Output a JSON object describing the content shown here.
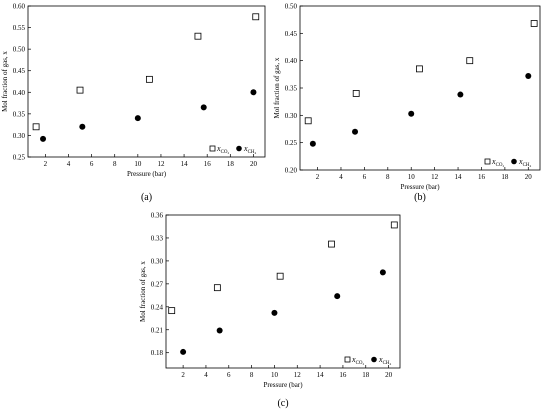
{
  "figure": {
    "marker_colors": {
      "co2": "#ffffff",
      "ch4": "#000000",
      "stroke": "#000000"
    }
  },
  "chart_data": [
    {
      "type": "scatter",
      "panel_label": "(a)",
      "xlabel": "Pressure (bar)",
      "ylabel": "Mol fraction of gas, x",
      "xlim": [
        0.5,
        21
      ],
      "ylim": [
        0.25,
        0.6
      ],
      "xticks": [
        "2",
        "4",
        "6",
        "8",
        "10",
        "12",
        "14",
        "16",
        "18",
        "20"
      ],
      "yticks": [
        "0.25",
        "0.30",
        "0.35",
        "0.40",
        "0.45",
        "0.50",
        "0.55",
        "0.60"
      ],
      "legend_position": "bottom-right",
      "series": [
        {
          "name": "x",
          "name_sub": "CO₂",
          "marker": "open-square",
          "x": [
            1.2,
            5.0,
            11.0,
            15.2,
            20.2
          ],
          "y": [
            0.32,
            0.405,
            0.43,
            0.53,
            0.575
          ]
        },
        {
          "name": "x",
          "name_sub": "CH₄",
          "marker": "filled-circle",
          "x": [
            1.8,
            5.2,
            10.0,
            15.7,
            20.0
          ],
          "y": [
            0.292,
            0.32,
            0.34,
            0.365,
            0.4
          ]
        }
      ]
    },
    {
      "type": "scatter",
      "panel_label": "(b)",
      "xlabel": "Pressure (bar)",
      "ylabel": "Mol fraction of gas, x",
      "xlim": [
        0.5,
        21
      ],
      "ylim": [
        0.2,
        0.5
      ],
      "xticks": [
        "2",
        "4",
        "6",
        "8",
        "10",
        "12",
        "14",
        "16",
        "18",
        "20"
      ],
      "yticks": [
        "0.20",
        "0.25",
        "0.30",
        "0.35",
        "0.40",
        "0.45",
        "0.50"
      ],
      "legend_position": "bottom-right",
      "series": [
        {
          "name": "x",
          "name_sub": "CO₂",
          "marker": "open-square",
          "x": [
            1.2,
            5.3,
            10.7,
            15.0,
            20.5
          ],
          "y": [
            0.29,
            0.34,
            0.385,
            0.4,
            0.468
          ]
        },
        {
          "name": "x",
          "name_sub": "CH₄",
          "marker": "filled-circle",
          "x": [
            1.6,
            5.2,
            10.0,
            14.2,
            20.0
          ],
          "y": [
            0.248,
            0.27,
            0.303,
            0.338,
            0.372
          ]
        }
      ]
    },
    {
      "type": "scatter",
      "panel_label": "(c)",
      "xlabel": "Pressure (bar)",
      "ylabel": "Mol fraction of gas, x",
      "xlim": [
        0.5,
        21
      ],
      "ylim": [
        0.16,
        0.36
      ],
      "xticks": [
        "2",
        "4",
        "6",
        "8",
        "10",
        "12",
        "14",
        "16",
        "18",
        "20"
      ],
      "yticks": [
        "0.18",
        "0.21",
        "0.24",
        "0.27",
        "0.30",
        "0.33",
        "0.36"
      ],
      "legend_position": "bottom-right",
      "series": [
        {
          "name": "x",
          "name_sub": "CO₂",
          "marker": "open-square",
          "x": [
            1.0,
            5.0,
            10.5,
            15.0,
            20.5
          ],
          "y": [
            0.235,
            0.265,
            0.28,
            0.322,
            0.347
          ]
        },
        {
          "name": "x",
          "name_sub": "CH₄",
          "marker": "filled-circle",
          "x": [
            2.0,
            5.2,
            10.0,
            15.5,
            19.5
          ],
          "y": [
            0.181,
            0.209,
            0.232,
            0.254,
            0.285
          ]
        }
      ]
    }
  ]
}
